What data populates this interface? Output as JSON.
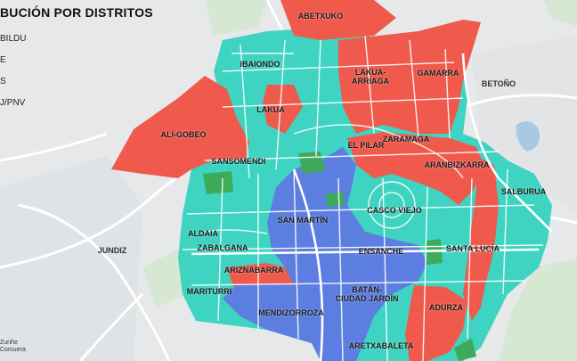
{
  "title": "BUCIÓN POR DISTRITOS",
  "legend": [
    {
      "label": "BILDU",
      "color": "#ef5a4d"
    },
    {
      "label": "E",
      "color": "#3fd3c1"
    },
    {
      "label": "S",
      "color": "#5c7ee0"
    },
    {
      "label": "J/PNV",
      "color": "#3faa5a"
    }
  ],
  "credit": {
    "line1": "Zuriñe",
    "line2": "Corcuera"
  },
  "colors": {
    "bildu": "#ef5a4d",
    "teal": "#3fd3c1",
    "blue": "#5c7ee0",
    "green": "#3faa5a",
    "bg": "#e8eaec",
    "road": "#ffffff"
  },
  "districts": [
    {
      "name": "ABETXUKO",
      "party": "bildu"
    },
    {
      "name": "IBAIONDO",
      "party": "teal"
    },
    {
      "name": "LAKUA-\nARRIAGA",
      "party": "bildu"
    },
    {
      "name": "GAMARRA",
      "party": "bildu"
    },
    {
      "name": "BETOÑO",
      "party": "none"
    },
    {
      "name": "LAKUA",
      "party": "teal"
    },
    {
      "name": "ALI-GOBEO",
      "party": "bildu"
    },
    {
      "name": "EL PILAR",
      "party": "bildu"
    },
    {
      "name": "ZARAMAGA",
      "party": "bildu"
    },
    {
      "name": "SANSOMENDI",
      "party": "teal"
    },
    {
      "name": "ARANBIZKARRA",
      "party": "bildu"
    },
    {
      "name": "SALBURUA",
      "party": "teal"
    },
    {
      "name": "SAN MARTÍN",
      "party": "blue"
    },
    {
      "name": "CASCO VIEJO",
      "party": "teal"
    },
    {
      "name": "JUNDIZ",
      "party": "none"
    },
    {
      "name": "ALDAIA",
      "party": "teal"
    },
    {
      "name": "ZABALGANA",
      "party": "teal"
    },
    {
      "name": "ENSANCHE",
      "party": "blue"
    },
    {
      "name": "SANTA LUCÍA",
      "party": "teal"
    },
    {
      "name": "ARIZNABARRA",
      "party": "bildu"
    },
    {
      "name": "MARITURRI",
      "party": "teal"
    },
    {
      "name": "BATÁN-\nCIUDAD JARDÍN",
      "party": "blue"
    },
    {
      "name": "ADURZA",
      "party": "bildu"
    },
    {
      "name": "MENDIZORROZA",
      "party": "blue"
    },
    {
      "name": "ARETXABALETA",
      "party": "teal"
    }
  ]
}
